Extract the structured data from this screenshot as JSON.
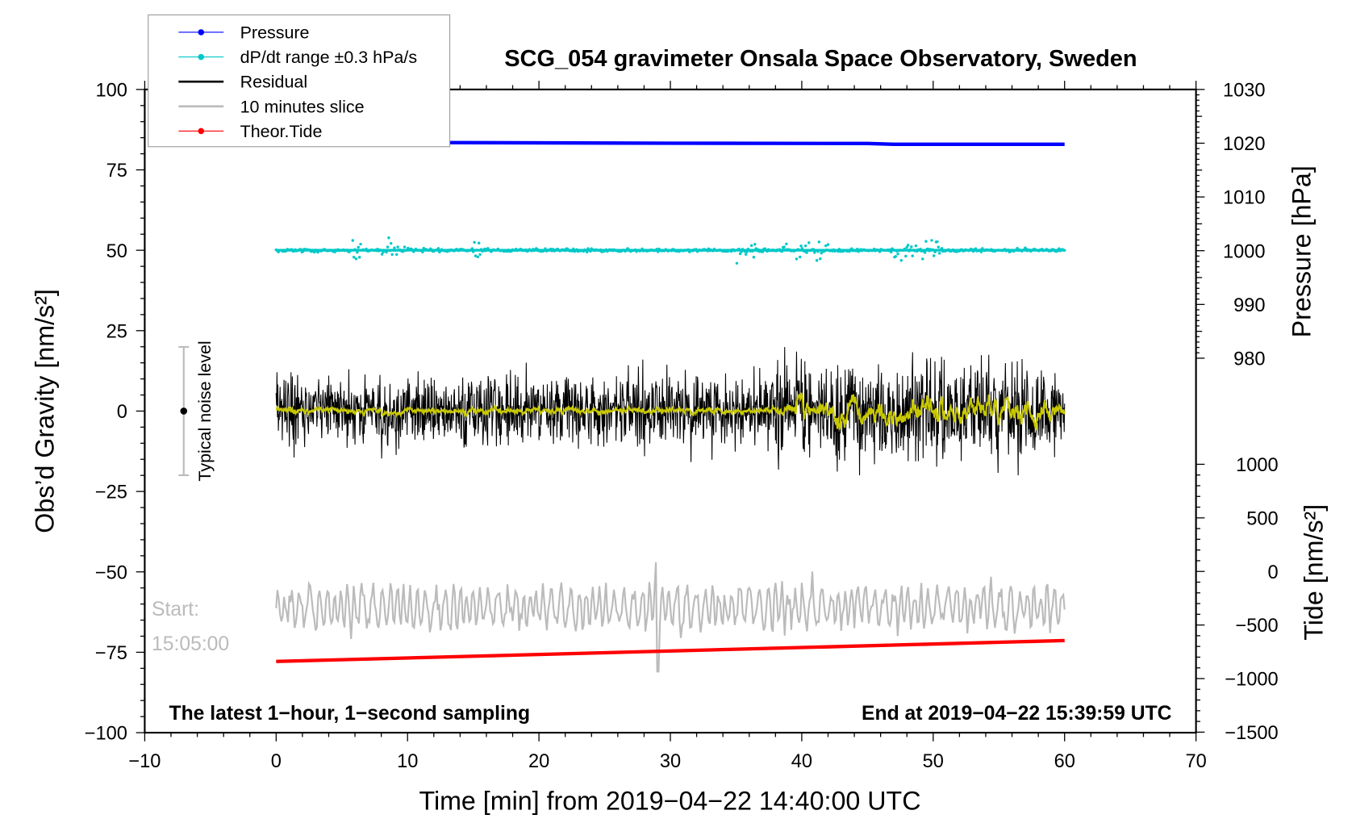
{
  "chart_data": {
    "type": "line",
    "title": "SCG_054 gravimeter Onsala Space Observatory, Sweden",
    "xlabel": "Time [min] from 2019−04−22 14:40:00 UTC",
    "ylabel": "Obs’d Gravity [nm/s²]",
    "ylabel_right_pressure": "Pressure [hPa]",
    "ylabel_right_tide": "Tide [nm/s²]",
    "xlim": [
      -10,
      70
    ],
    "ylim": [
      -100,
      100
    ],
    "pressure_lim": [
      980,
      1030
    ],
    "tide_lim": [
      -1500,
      1000
    ],
    "x_ticks": [
      "−10",
      "0",
      "10",
      "20",
      "30",
      "40",
      "50",
      "60",
      "70"
    ],
    "y_ticks": [
      "100",
      "75",
      "50",
      "25",
      "0",
      "−25",
      "−50",
      "−75",
      "−100"
    ],
    "pressure_ticks": [
      "1030",
      "1020",
      "1010",
      "1000",
      "990",
      "980"
    ],
    "tide_ticks": [
      "1000",
      "500",
      "0",
      "−500",
      "−1000",
      "−1500"
    ],
    "legend": {
      "placement": "top-left",
      "entries": [
        {
          "label": "Pressure",
          "color": "#0000ff",
          "marker": "dot"
        },
        {
          "label": "dP/dt range ±0.3 hPa/s",
          "color": "#00c8c8",
          "marker": "dot"
        },
        {
          "label": "Residual",
          "color": "#000000",
          "marker": "line"
        },
        {
          "label": "10 minutes slice",
          "color": "#bbbbbb",
          "marker": "line"
        },
        {
          "label": "Theor.Tide",
          "color": "#ff0000",
          "marker": "dot"
        }
      ]
    },
    "series": [
      {
        "name": "Pressure",
        "axis": "pressure_hPa",
        "x": [
          0,
          15,
          30,
          45,
          47,
          60
        ],
        "values": [
          1020.2,
          1020.1,
          1020.0,
          1019.95,
          1019.8,
          1019.8
        ],
        "color": "#0000ff"
      },
      {
        "name": "dP/dt range",
        "axis": "gravity_offset",
        "center": 50,
        "baseline_spread": 0.6,
        "burst_windows_min": [
          [
            5.5,
            6.5
          ],
          [
            8,
            10
          ],
          [
            15,
            16.5
          ],
          [
            35,
            36.5
          ],
          [
            38.5,
            42
          ],
          [
            47,
            51
          ]
        ],
        "burst_spread": 3.5,
        "color": "#00c8c8"
      },
      {
        "name": "Residual",
        "axis": "gravity",
        "x_range": [
          0,
          60
        ],
        "center": 0,
        "std_early": 5.5,
        "std_late": 7.5,
        "peak_max": 26,
        "peak_min": -20,
        "color": "#000000"
      },
      {
        "name": "Residual smoothed",
        "axis": "gravity",
        "center": 0,
        "color": "#c8c800"
      },
      {
        "name": "10 minutes slice",
        "axis": "gravity_offset",
        "center": -61,
        "min": -81,
        "max": -47,
        "color": "#bbbbbb"
      },
      {
        "name": "Theor.Tide",
        "axis": "tide_nm_s2",
        "x": [
          0,
          60
        ],
        "values": [
          -840,
          -645
        ],
        "color": "#ff0000"
      }
    ],
    "noise_level": {
      "label": "Typical noise level",
      "center": 0,
      "range": [
        -20,
        20
      ]
    },
    "annotations": {
      "sampling": "The latest 1−hour, 1−second sampling",
      "end": "End at 2019−04−22 15:39:59 UTC",
      "start_label": "Start:",
      "start_time": "15:05:00"
    }
  }
}
